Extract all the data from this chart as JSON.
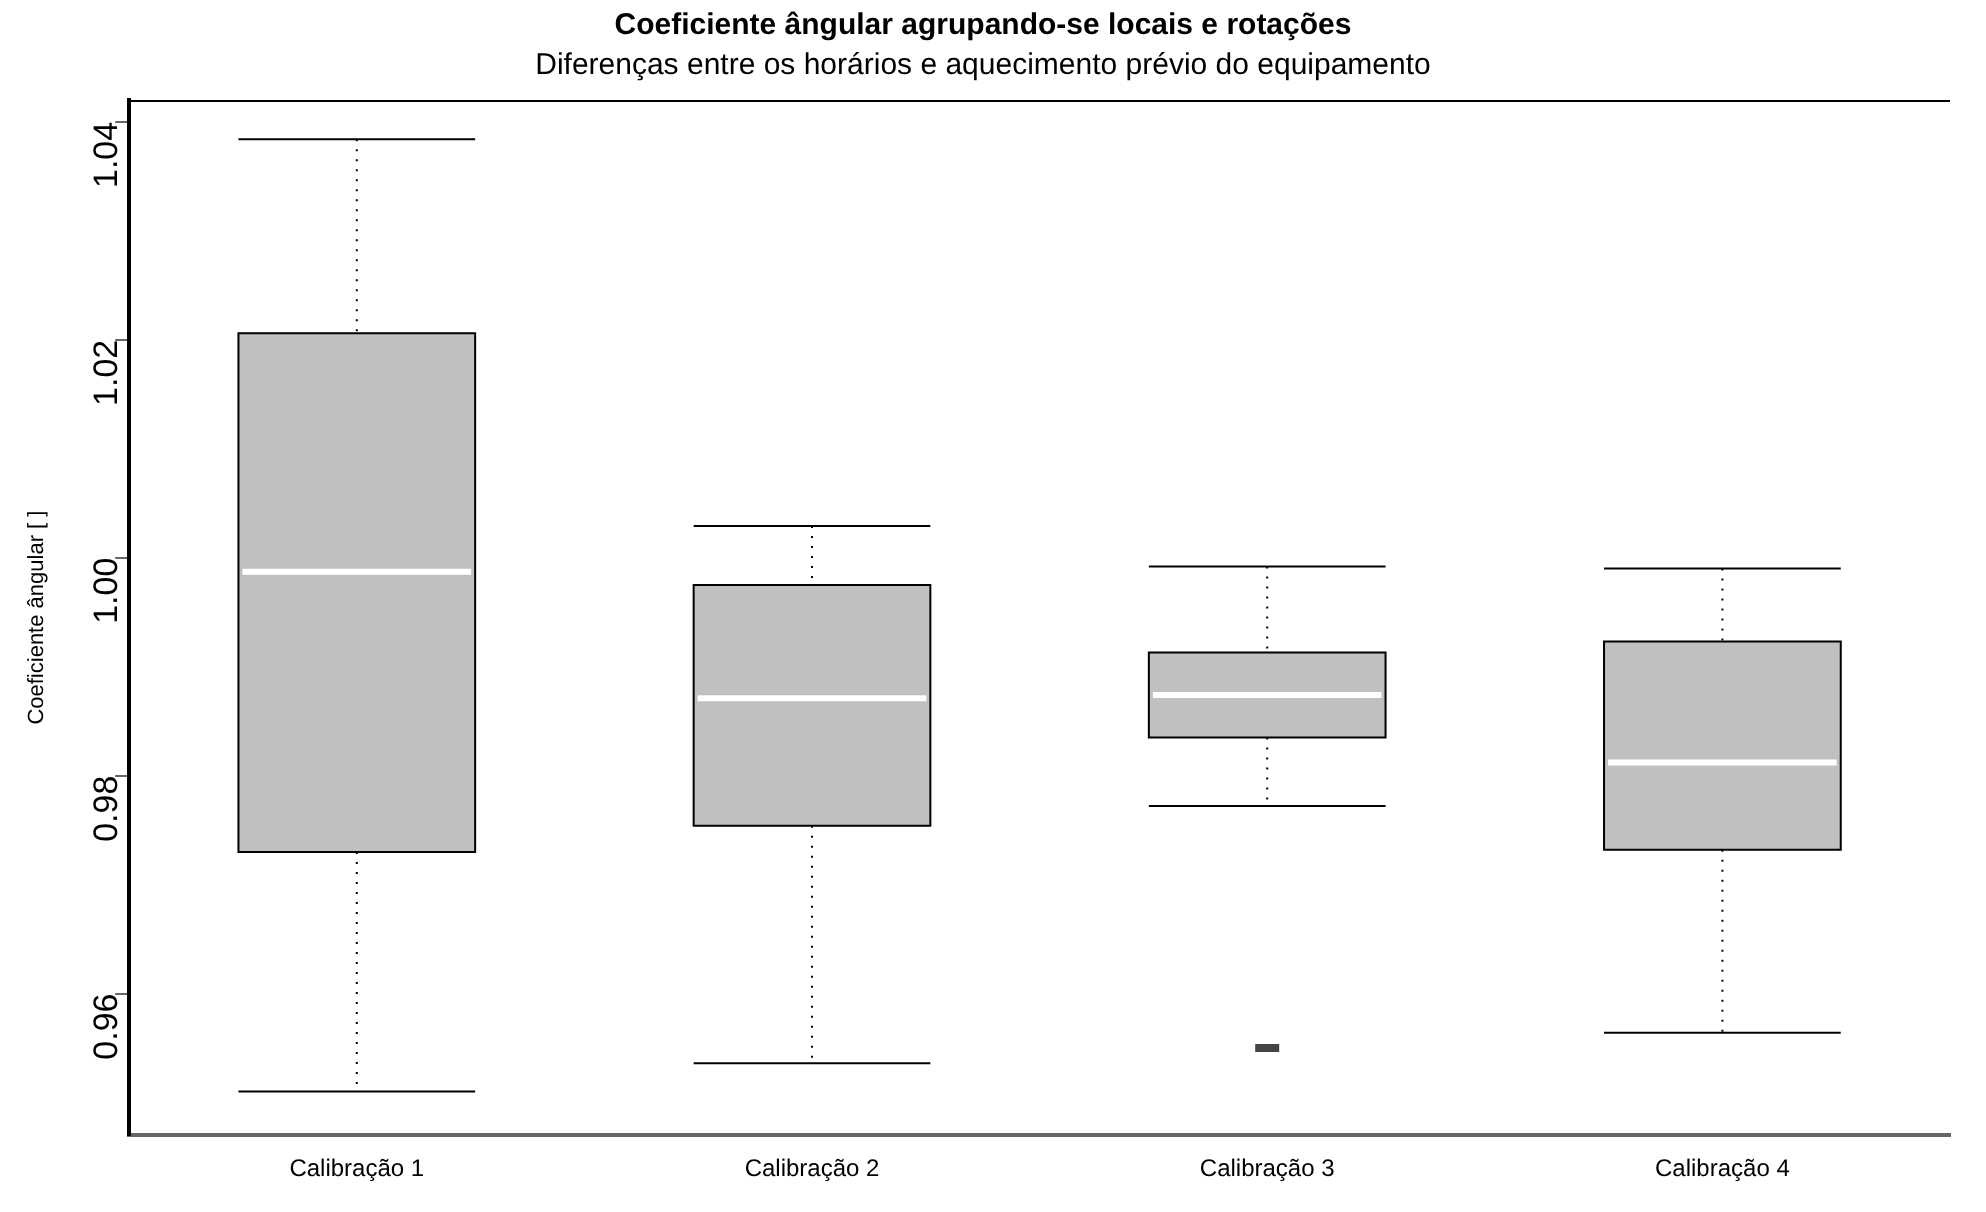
{
  "chart_data": {
    "type": "box",
    "title": "Coeficiente ângular agrupando-se locais e rotações",
    "subtitle": "Diferenças entre os horários e aquecimento prévio do equipamento",
    "ylabel": "Coeficiente ângular [ ]",
    "categories": [
      "Calibração 1",
      "Calibração 2",
      "Calibração 3",
      "Calibração 4"
    ],
    "color": "#c0c0c0",
    "ylim": [
      0.947,
      1.042
    ],
    "yticks": [
      {
        "value": 0.96,
        "label": "0.96"
      },
      {
        "value": 0.98,
        "label": "0.98"
      },
      {
        "value": 1.0,
        "label": "1.00"
      },
      {
        "value": 1.02,
        "label": "1.02"
      },
      {
        "value": 1.04,
        "label": "1.04"
      }
    ],
    "grid": false,
    "legend": false,
    "boxes": [
      {
        "low": 0.951,
        "q1": 0.973,
        "median": 0.9987,
        "q3": 1.0206,
        "high": 1.0384
      },
      {
        "low": 0.9536,
        "q1": 0.9754,
        "median": 0.9871,
        "q3": 0.9975,
        "high": 1.0029
      },
      {
        "low": 0.9772,
        "q1": 0.9835,
        "median": 0.9874,
        "q3": 0.9913,
        "high": 0.9992,
        "outliers": [
          0.955
        ]
      },
      {
        "low": 0.9564,
        "q1": 0.9732,
        "median": 0.9812,
        "q3": 0.9923,
        "high": 0.999
      }
    ]
  }
}
